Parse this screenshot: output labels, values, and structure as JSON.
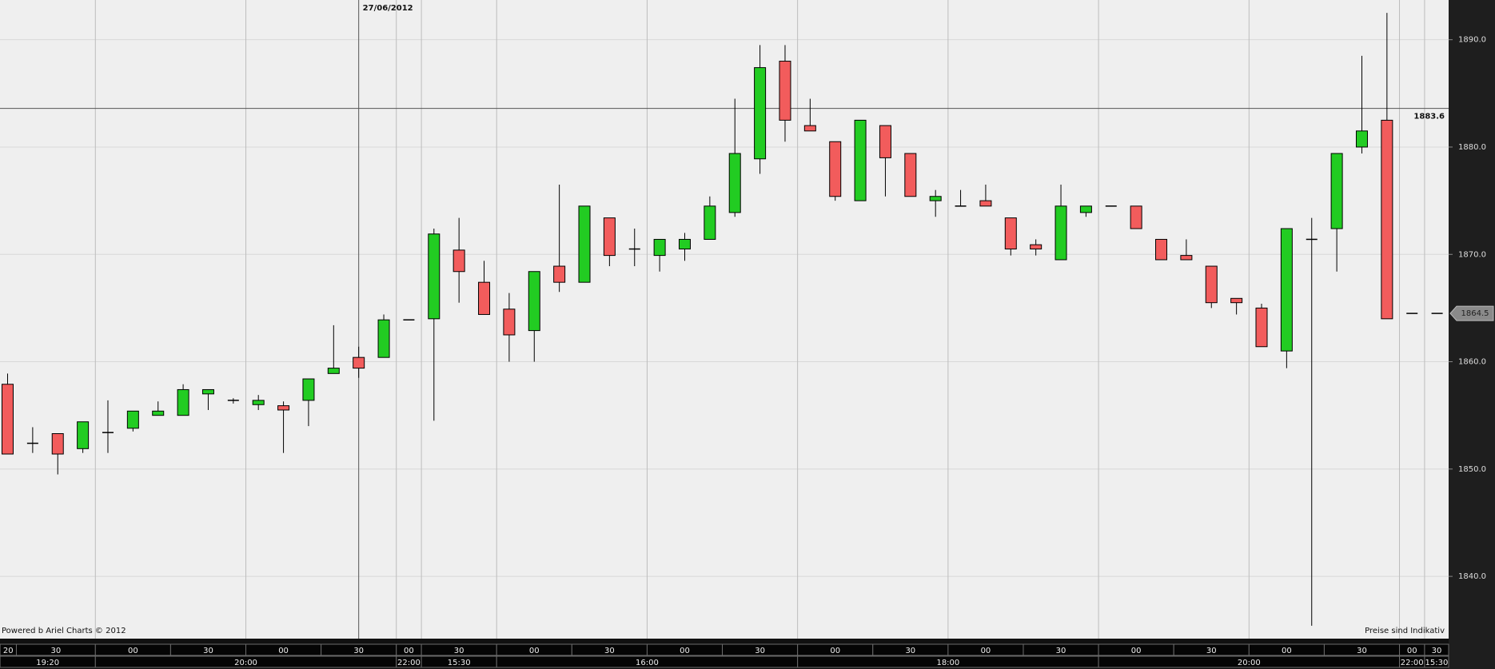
{
  "chart_data": {
    "type": "candlestick",
    "date_label": "27/06/2012",
    "crosshair_price": 1883.6,
    "last_price": 1864.5,
    "credit": "Powered b Ariel Charts © 2012",
    "disclaimer": "Preise sind Indikativ",
    "up_color": "#22cc22",
    "down_color": "#f25c5c",
    "grid": true,
    "ylim": [
      1834.2,
      1893.7
    ],
    "yticks": [
      {
        "value": 1840,
        "label": "1840.0"
      },
      {
        "value": 1850,
        "label": "1850.0"
      },
      {
        "value": 1860,
        "label": "1860.0"
      },
      {
        "value": 1870,
        "label": "1870.0"
      },
      {
        "value": 1880,
        "label": "1880.0"
      },
      {
        "value": 1890,
        "label": "1890.0"
      }
    ],
    "x_axis_minor": [
      "20",
      "30",
      "00",
      "30",
      "00",
      "30",
      "00",
      "30",
      "00",
      "30",
      "00",
      "30",
      "00",
      "30",
      "00",
      "30",
      "00",
      "30",
      "00",
      "30",
      "00",
      "30"
    ],
    "x_axis_major": [
      "19:20",
      "20:00",
      "22:00",
      "15:30",
      "16:00",
      "18:00",
      "20:00",
      "22:00",
      "15:30"
    ],
    "open": [
      1857.9,
      1852.4,
      1853.3,
      1851.9,
      1853.4,
      1853.8,
      1855.0,
      1855.0,
      1857.0,
      1856.4,
      1856.0,
      1855.9,
      1856.4,
      1858.9,
      1860.4,
      1860.4,
      1863.9,
      1864.0,
      1870.4,
      1867.4,
      1864.9,
      1862.9,
      1868.9,
      1867.4,
      1873.4,
      1870.5,
      1869.9,
      1870.5,
      1871.4,
      1873.9,
      1878.9,
      1888.0,
      1882.0,
      1880.5,
      1875.0,
      1882.0,
      1879.4,
      1875.0,
      1874.5,
      1875.0,
      1873.4,
      1870.9,
      1869.5,
      1873.9,
      1874.5,
      1874.5,
      1871.4,
      1869.9,
      1868.9,
      1865.9,
      1865.0,
      1861.0,
      1871.4,
      1872.4,
      1880.0,
      1882.5,
      1864.5,
      1864.5
    ],
    "high": [
      1858.9,
      1853.9,
      1853.3,
      1854.4,
      1856.4,
      1855.4,
      1856.3,
      1857.9,
      1857.4,
      1856.6,
      1856.9,
      1856.3,
      1858.4,
      1863.4,
      1861.4,
      1864.4,
      1863.9,
      1872.4,
      1873.4,
      1869.4,
      1866.4,
      1868.4,
      1876.5,
      1874.5,
      1873.4,
      1872.4,
      1871.4,
      1872.0,
      1875.4,
      1884.5,
      1889.5,
      1889.5,
      1884.5,
      1880.5,
      1882.5,
      1882.0,
      1879.4,
      1876.0,
      1876.0,
      1876.5,
      1873.4,
      1871.4,
      1876.5,
      1874.5,
      1874.5,
      1874.5,
      1871.4,
      1871.4,
      1868.9,
      1865.9,
      1865.4,
      1872.4,
      1873.4,
      1879.4,
      1888.5,
      1892.5,
      1864.5,
      1864.5
    ],
    "low": [
      1851.4,
      1851.5,
      1849.5,
      1851.5,
      1851.5,
      1853.5,
      1855.0,
      1855.0,
      1855.5,
      1856.1,
      1855.5,
      1851.5,
      1854.0,
      1858.9,
      1858.5,
      1860.4,
      1863.9,
      1854.5,
      1865.5,
      1864.4,
      1860.0,
      1860.0,
      1866.5,
      1867.4,
      1868.9,
      1868.9,
      1868.4,
      1869.4,
      1871.4,
      1873.5,
      1877.5,
      1880.5,
      1881.5,
      1875.0,
      1875.0,
      1875.4,
      1875.4,
      1873.5,
      1874.5,
      1874.5,
      1869.9,
      1869.9,
      1869.5,
      1873.5,
      1874.5,
      1872.4,
      1869.5,
      1869.5,
      1865.0,
      1864.4,
      1861.4,
      1859.4,
      1835.4,
      1868.4,
      1879.4,
      1864.0,
      1864.5,
      1864.5
    ],
    "close": [
      1851.4,
      1852.4,
      1851.4,
      1854.4,
      1853.4,
      1855.4,
      1855.4,
      1857.4,
      1857.4,
      1856.4,
      1856.4,
      1855.5,
      1858.4,
      1859.4,
      1859.4,
      1863.9,
      1863.9,
      1871.9,
      1868.4,
      1864.4,
      1862.5,
      1868.4,
      1867.4,
      1874.5,
      1869.9,
      1870.5,
      1871.4,
      1871.4,
      1874.5,
      1879.4,
      1887.4,
      1882.5,
      1881.5,
      1875.4,
      1882.5,
      1879.0,
      1875.4,
      1875.4,
      1874.5,
      1874.5,
      1870.5,
      1870.5,
      1874.5,
      1874.5,
      1874.5,
      1872.4,
      1869.5,
      1869.5,
      1865.5,
      1865.5,
      1861.4,
      1872.4,
      1871.4,
      1879.4,
      1881.5,
      1864.0,
      1864.5,
      1864.5
    ]
  }
}
